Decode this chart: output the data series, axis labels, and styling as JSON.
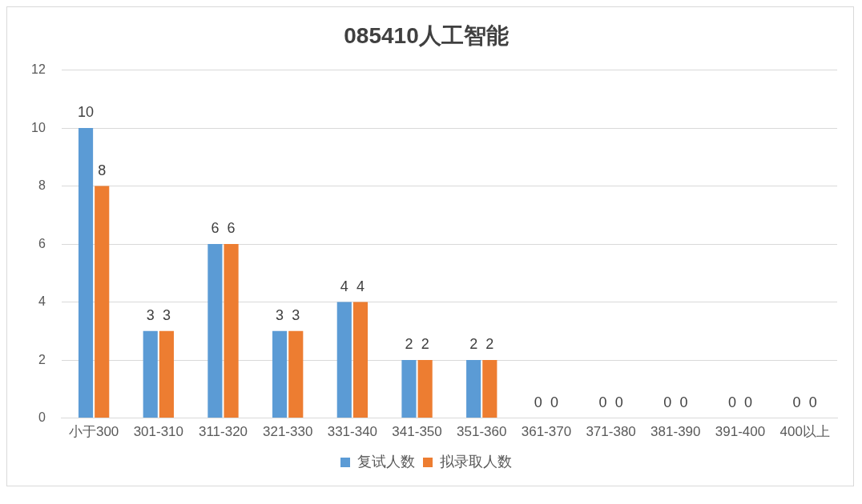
{
  "chart_data": {
    "type": "bar",
    "title": "085410人工智能",
    "categories": [
      "小于300",
      "301-310",
      "311-320",
      "321-330",
      "331-340",
      "341-350",
      "351-360",
      "361-370",
      "371-380",
      "381-390",
      "391-400",
      "400以上"
    ],
    "series": [
      {
        "name": "复试人数",
        "color": "#5b9bd5",
        "values": [
          10,
          3,
          6,
          3,
          4,
          2,
          2,
          0,
          0,
          0,
          0,
          0
        ]
      },
      {
        "name": "拟录取人数",
        "color": "#ed7d31",
        "values": [
          8,
          3,
          6,
          3,
          4,
          2,
          2,
          0,
          0,
          0,
          0,
          0
        ]
      }
    ],
    "ylim": [
      0,
      12
    ],
    "yticks": [
      0,
      2,
      4,
      6,
      8,
      10,
      12
    ],
    "grid": "y",
    "legend": "bottom",
    "data_labels": true
  }
}
